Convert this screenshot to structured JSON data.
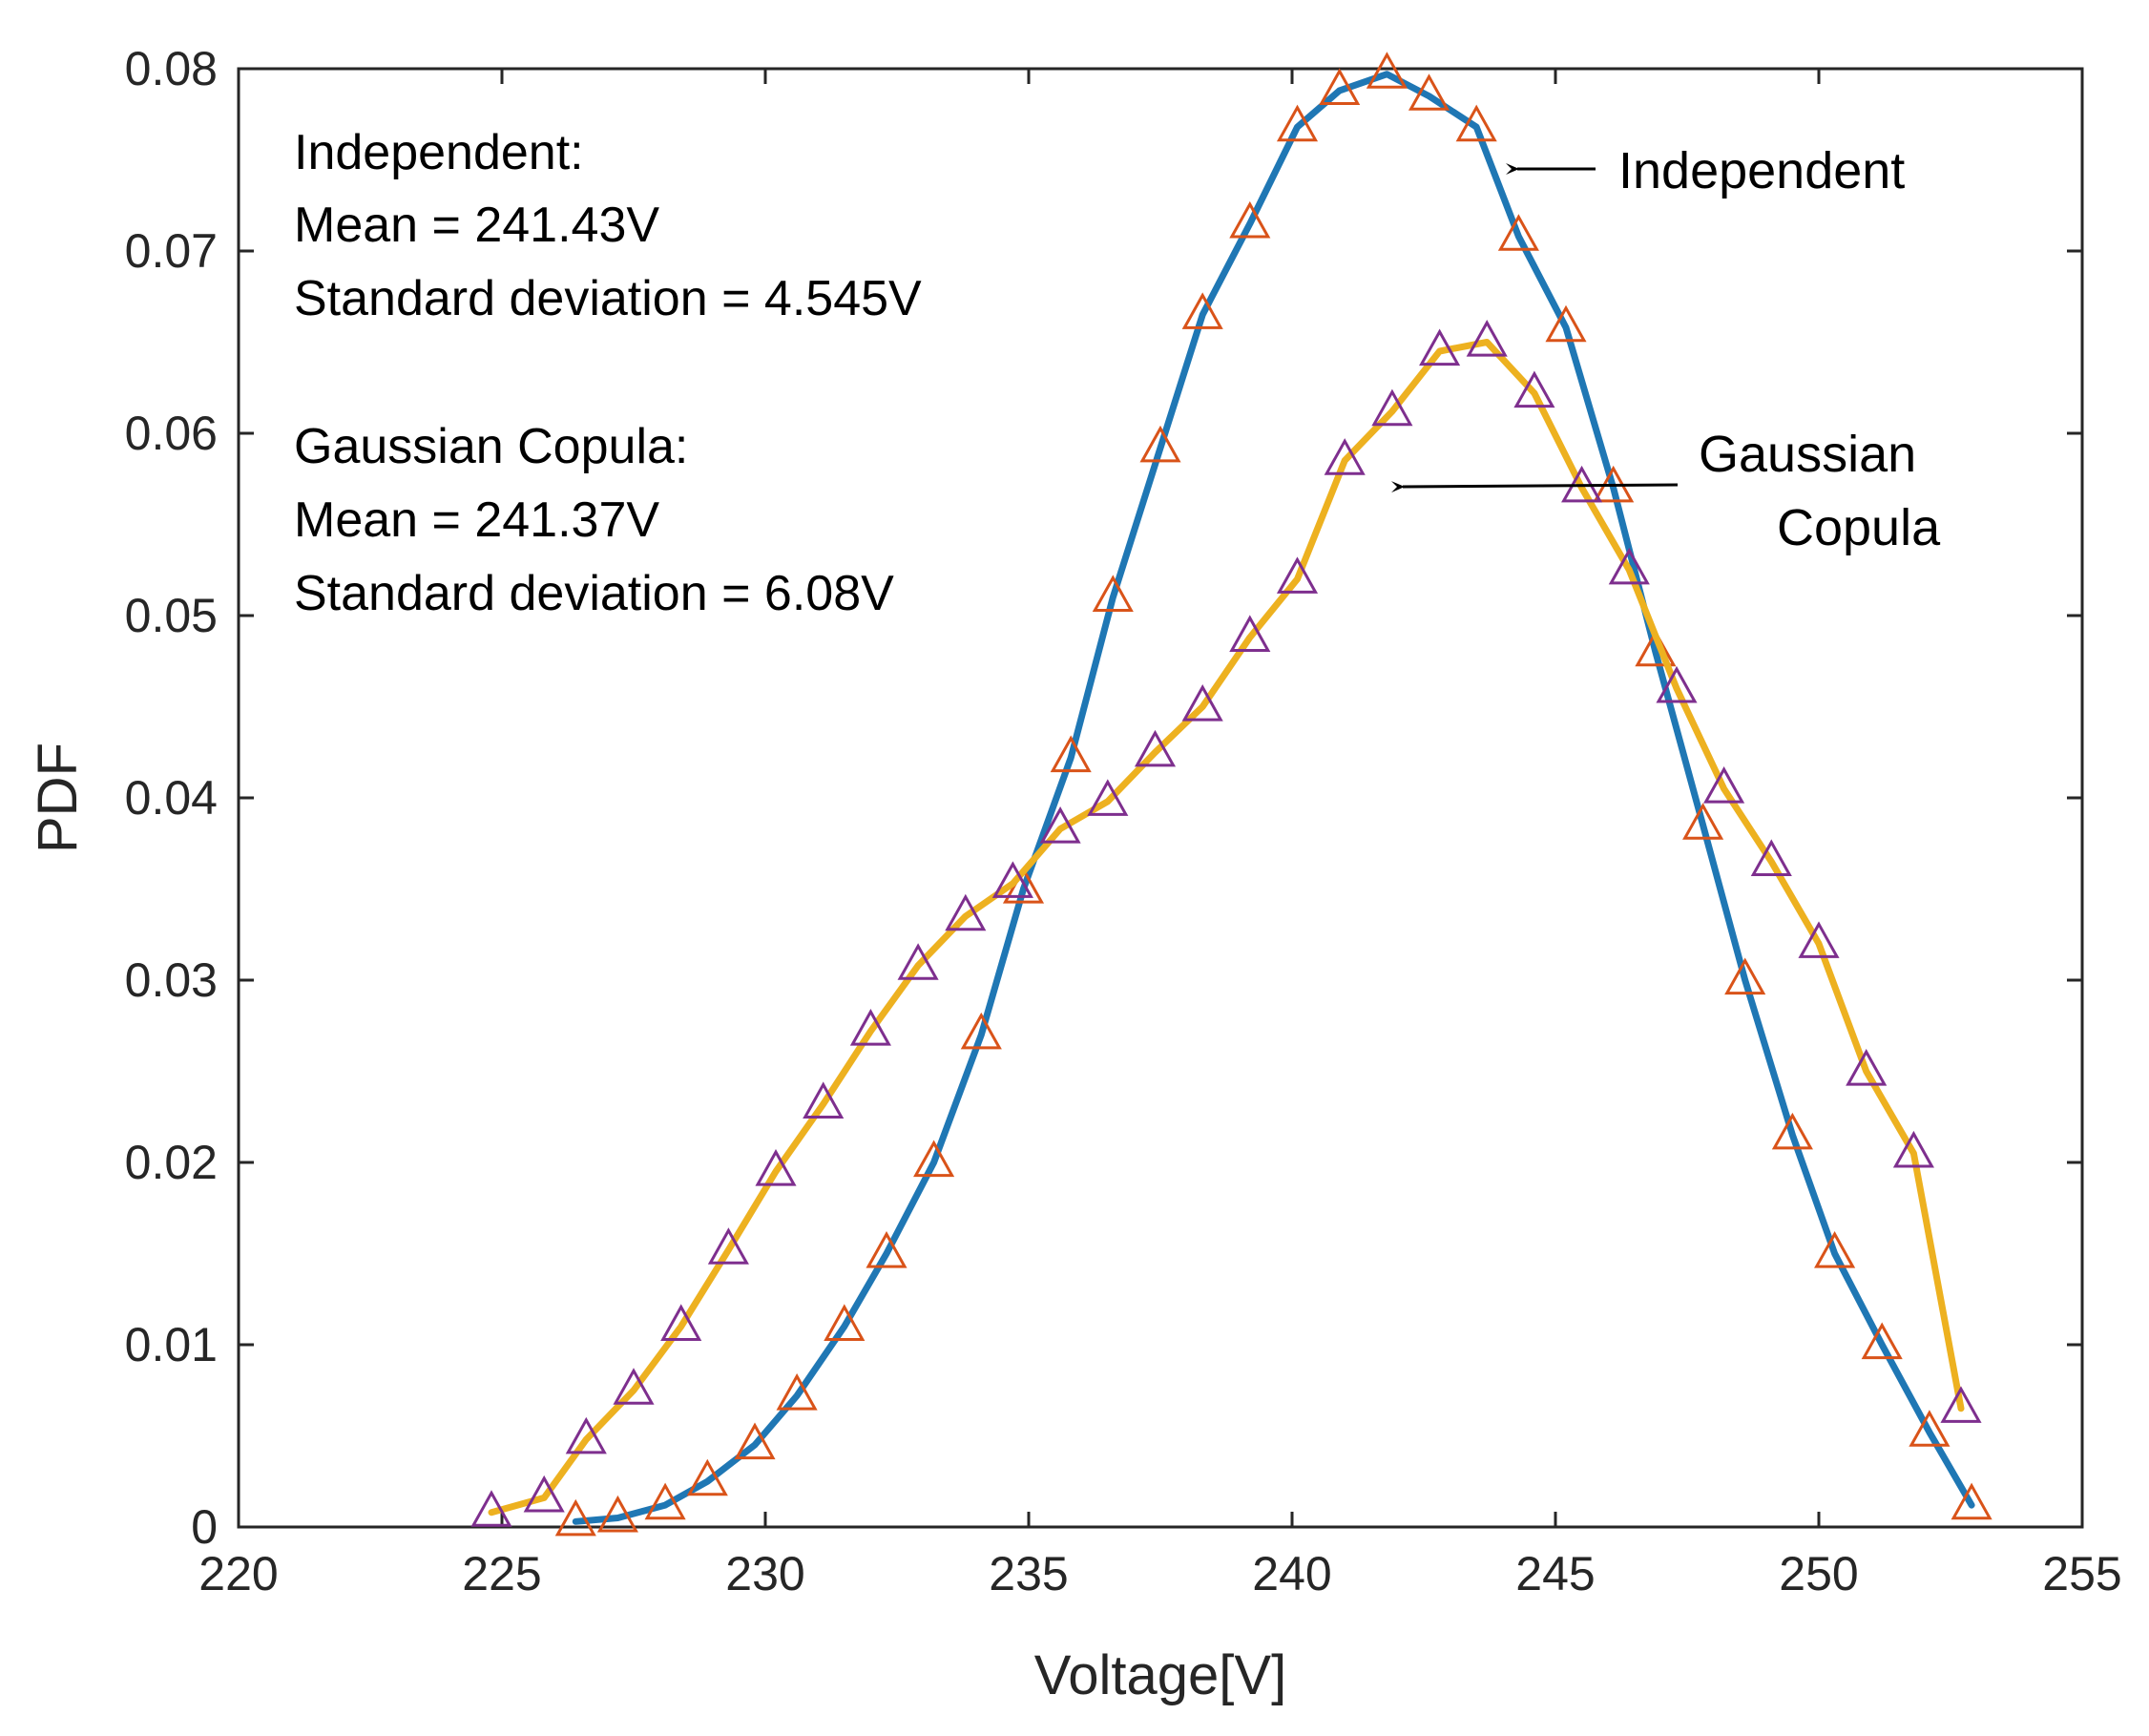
{
  "chart_data": {
    "type": "line",
    "xlabel": "Voltage[V]",
    "ylabel": "PDF",
    "xlim": [
      220,
      255
    ],
    "ylim": [
      0,
      0.08
    ],
    "xticks": [
      "220",
      "225",
      "230",
      "235",
      "240",
      "245",
      "250",
      "255"
    ],
    "yticks": [
      "0",
      "0.01",
      "0.02",
      "0.03",
      "0.04",
      "0.05",
      "0.06",
      "0.07",
      "0.08"
    ],
    "grid": false,
    "series": [
      {
        "name": "Independent",
        "line_color": "#1f77b4",
        "marker": "triangle",
        "marker_color": "#d95319",
        "x": [
          226.4,
          227.2,
          228.1,
          228.9,
          229.8,
          230.6,
          231.5,
          232.3,
          233.2,
          234.1,
          234.9,
          235.8,
          236.6,
          237.5,
          238.3,
          239.2,
          240.1,
          240.9,
          241.8,
          242.6,
          243.5,
          244.3,
          245.2,
          246.1,
          246.9,
          247.8,
          248.6,
          249.5,
          250.3,
          251.2,
          252.1,
          252.9
        ],
        "y": [
          0.0003,
          0.0005,
          0.0012,
          0.0025,
          0.0045,
          0.0072,
          0.011,
          0.015,
          0.02,
          0.027,
          0.035,
          0.0422,
          0.051,
          0.0592,
          0.0665,
          0.0715,
          0.0768,
          0.0788,
          0.0797,
          0.0785,
          0.0768,
          0.0708,
          0.0658,
          0.057,
          0.048,
          0.0385,
          0.03,
          0.0215,
          0.015,
          0.01,
          0.0052,
          0.0012
        ]
      },
      {
        "name": "Gaussian Copula",
        "line_color": "#edb120",
        "marker": "triangle",
        "marker_color": "#7e2f8e",
        "x": [
          224.8,
          225.8,
          226.6,
          227.5,
          228.4,
          229.3,
          230.2,
          231.1,
          232.0,
          232.9,
          233.8,
          234.7,
          235.6,
          236.5,
          237.4,
          238.3,
          239.2,
          240.1,
          241.0,
          241.9,
          242.8,
          243.7,
          244.6,
          245.5,
          246.4,
          247.3,
          248.2,
          249.1,
          250.0,
          250.9,
          251.8,
          252.7
        ],
        "y": [
          0.0008,
          0.0016,
          0.0048,
          0.0075,
          0.011,
          0.0152,
          0.0195,
          0.0232,
          0.0272,
          0.0308,
          0.0335,
          0.0353,
          0.0383,
          0.0398,
          0.0425,
          0.045,
          0.0488,
          0.052,
          0.0585,
          0.0612,
          0.0645,
          0.065,
          0.0622,
          0.057,
          0.0525,
          0.046,
          0.0405,
          0.0365,
          0.032,
          0.025,
          0.0205,
          0.0065
        ]
      }
    ],
    "annotations": {
      "independent_heading": "Independent:",
      "independent_mean": "Mean = 241.43V",
      "independent_std": "Standard deviation = 4.545V",
      "copula_heading": "Gaussian Copula:",
      "copula_mean": "Mean = 241.37V",
      "copula_std": "Standard deviation = 6.08V",
      "callout_independent": "Independent",
      "callout_copula_line1": "Gaussian",
      "callout_copula_line2": "Copula"
    }
  }
}
